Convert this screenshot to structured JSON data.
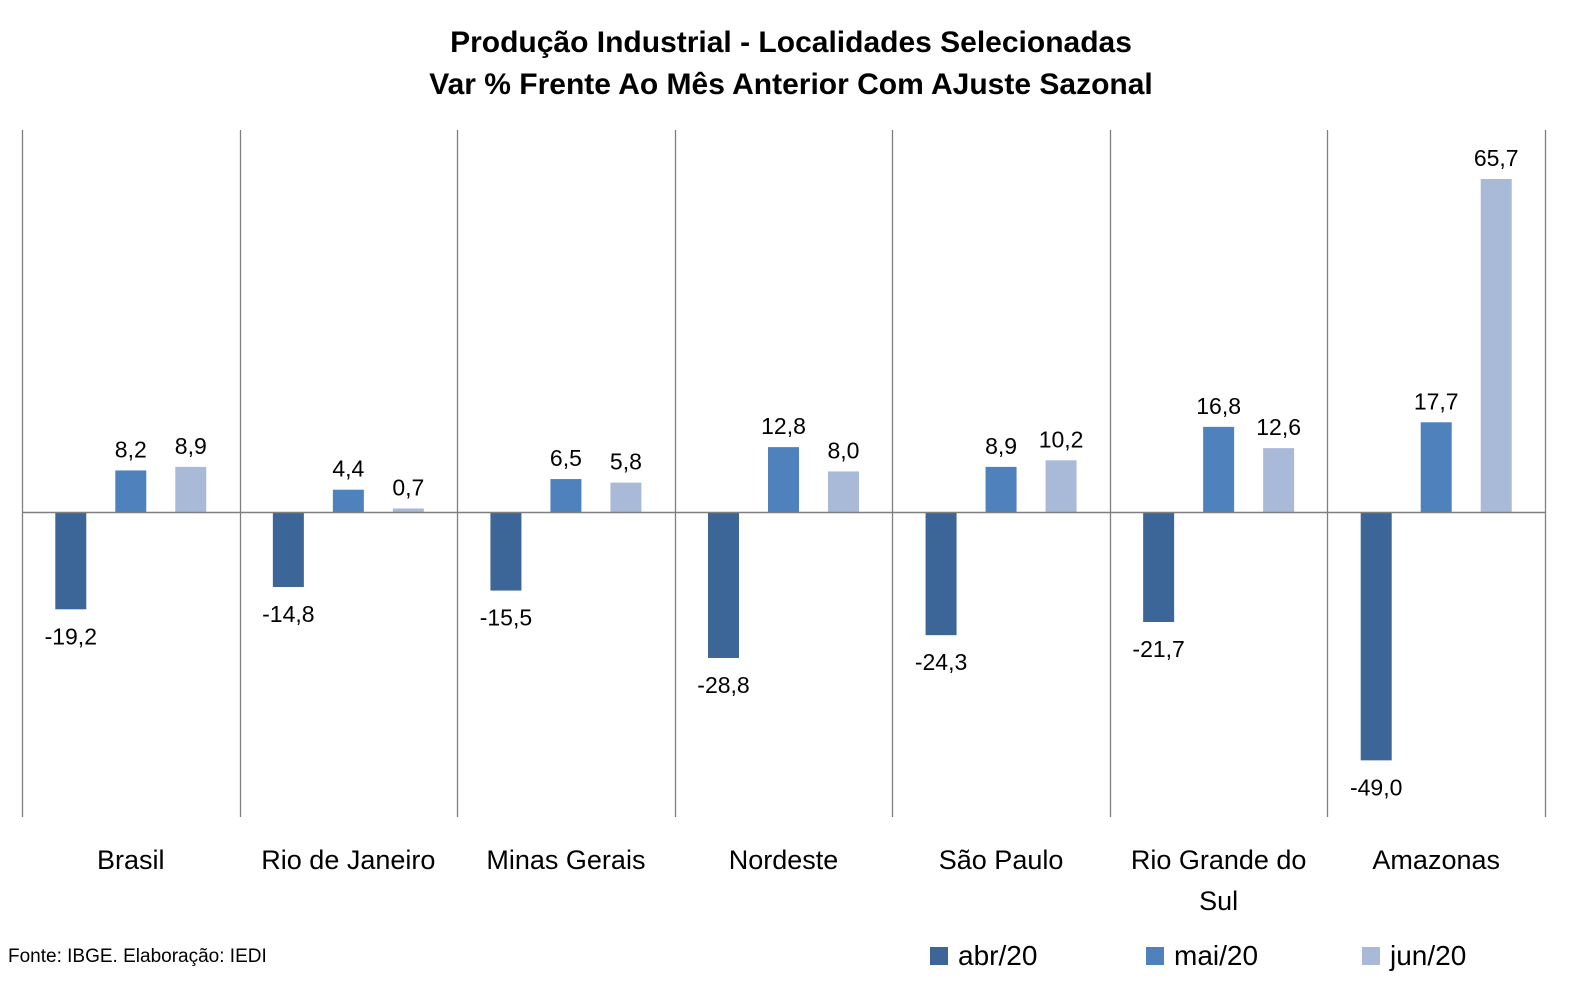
{
  "chart_data": {
    "type": "bar",
    "title": "Produção Industrial - Localidades Selecionadas",
    "subtitle": "Var % Frente Ao Mês Anterior Com AJuste Sazonal",
    "categories": [
      [
        "Brasil"
      ],
      [
        "Rio de Janeiro"
      ],
      [
        "Minas Gerais"
      ],
      [
        "Nordeste"
      ],
      [
        "São Paulo"
      ],
      [
        "Rio Grande do",
        "Sul"
      ],
      [
        "Amazonas"
      ]
    ],
    "series": [
      {
        "name": "abr/20",
        "color": "#3d6698",
        "values": [
          -19.2,
          -14.8,
          -15.5,
          -28.8,
          -24.3,
          -21.7,
          -49.0
        ],
        "labels": [
          "-19,2",
          "-14,8",
          "-15,5",
          "-28,8",
          "-24,3",
          "-21,7",
          "-49,0"
        ]
      },
      {
        "name": "mai/20",
        "color": "#4f81bd",
        "values": [
          8.2,
          4.4,
          6.5,
          12.8,
          8.9,
          16.8,
          17.7
        ],
        "labels": [
          "8,2",
          "4,4",
          "6,5",
          "12,8",
          "8,9",
          "16,8",
          "17,7"
        ]
      },
      {
        "name": "jun/20",
        "color": "#a8bad8",
        "values": [
          8.9,
          0.7,
          5.8,
          8.0,
          10.2,
          12.6,
          65.7
        ],
        "labels": [
          "8,9",
          "0,7",
          "5,8",
          "8,0",
          "10,2",
          "12,6",
          "65,7"
        ]
      }
    ],
    "ylim": [
      -60,
      75
    ],
    "grid": false,
    "legend_position": "bottom-right",
    "source": "Fonte: IBGE. Elaboração: IEDI"
  }
}
